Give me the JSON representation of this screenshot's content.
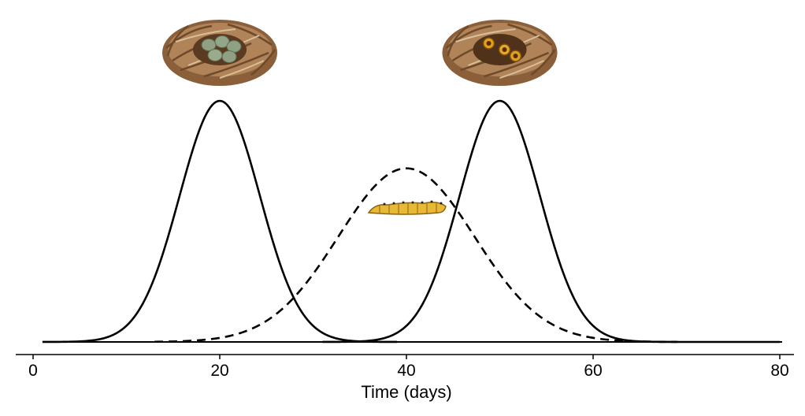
{
  "chart_data": {
    "type": "line",
    "xlabel": "Time (days)",
    "ylabel": "",
    "xlim": [
      0,
      80
    ],
    "ylim": [
      0,
      1
    ],
    "xticks": [
      {
        "value": 0,
        "label": "0"
      },
      {
        "value": 20,
        "label": "20"
      },
      {
        "value": 40,
        "label": "40"
      },
      {
        "value": 60,
        "label": "60"
      },
      {
        "value": 80,
        "label": "80"
      }
    ],
    "grid": false,
    "legend": "none",
    "series": [
      {
        "style": "solid",
        "color": "#000000",
        "shape": "gaussian",
        "mean": 20,
        "sd": 4.3,
        "peak": 1.0,
        "x_range": [
          1,
          39
        ]
      },
      {
        "style": "solid",
        "color": "#000000",
        "shape": "gaussian",
        "mean": 50,
        "sd": 4.3,
        "peak": 1.0,
        "x_range": [
          31,
          80
        ]
      },
      {
        "style": "dashed",
        "color": "#000000",
        "shape": "gaussian",
        "mean": 40,
        "sd": 7.3,
        "peak": 0.72,
        "x_range": [
          13,
          69
        ]
      }
    ],
    "annotations": [
      {
        "icon": "nest-with-eggs-icon",
        "at_x": 20
      },
      {
        "icon": "nest-with-chicks-icon",
        "at_x": 50
      },
      {
        "icon": "caterpillar-icon",
        "at_x": 40
      }
    ]
  }
}
